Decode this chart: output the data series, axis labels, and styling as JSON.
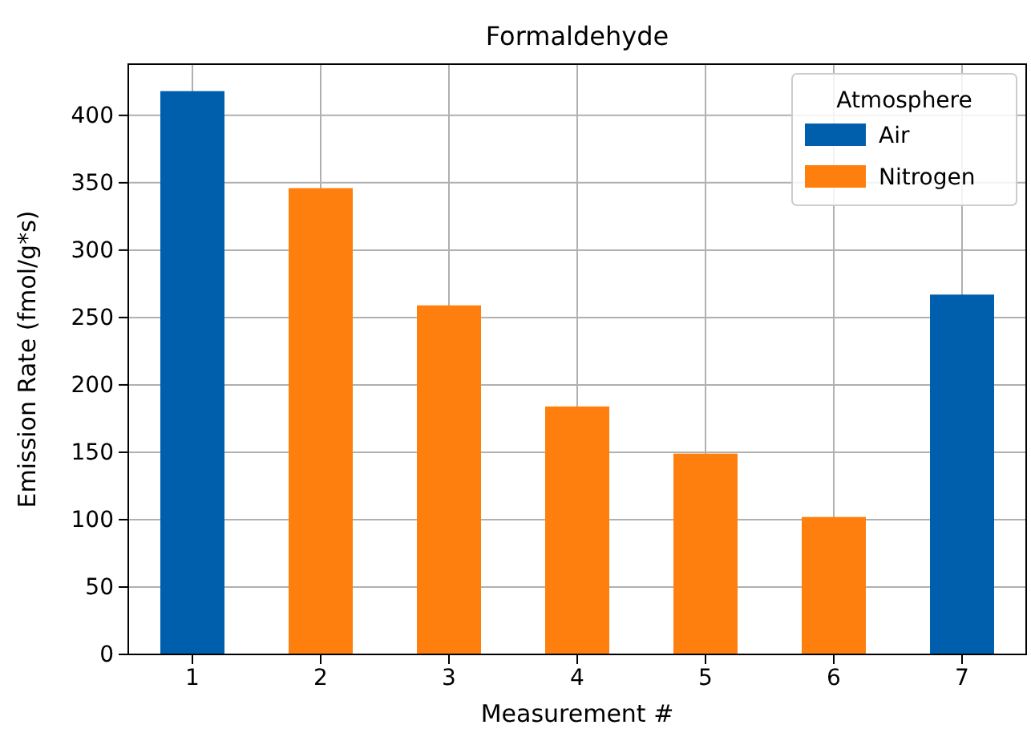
{
  "chart_data": {
    "type": "bar",
    "title": "Formaldehyde",
    "xlabel": "Measurement #",
    "ylabel": "Emission Rate (fmol/g*s)",
    "legend_title": "Atmosphere",
    "categories": [
      "1",
      "2",
      "3",
      "4",
      "5",
      "6",
      "7"
    ],
    "series": [
      {
        "name": "Air",
        "color": "#005fad",
        "values": [
          418,
          null,
          null,
          null,
          null,
          null,
          267
        ]
      },
      {
        "name": "Nitrogen",
        "color": "#ff7f0e",
        "values": [
          null,
          346,
          259,
          184,
          149,
          102,
          null
        ]
      }
    ],
    "ylim": [
      0,
      438
    ],
    "yticks": [
      0,
      50,
      100,
      150,
      200,
      250,
      300,
      350,
      400
    ],
    "grid": true,
    "legend": "top right"
  }
}
